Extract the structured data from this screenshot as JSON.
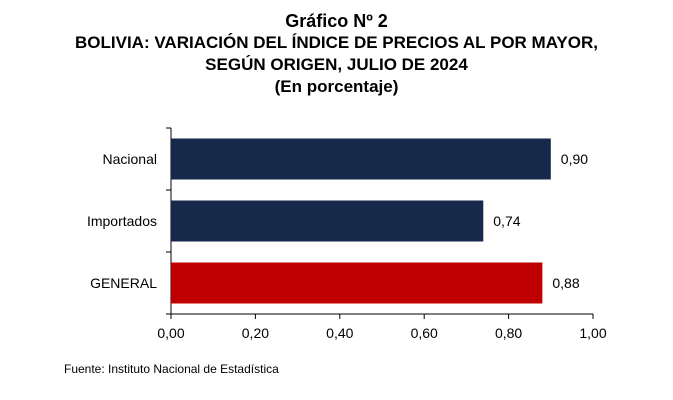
{
  "chart_data": {
    "type": "bar",
    "orientation": "horizontal",
    "title_lines": [
      "Gráfico Nº 2",
      "BOLIVIA: VARIACIÓN DEL ÍNDICE DE PRECIOS AL POR MAYOR,",
      "SEGÚN ORIGEN, JULIO DE 2024",
      "(En porcentaje)"
    ],
    "categories": [
      "Nacional",
      "Importados",
      "GENERAL"
    ],
    "values": [
      0.9,
      0.74,
      0.88
    ],
    "value_labels": [
      "0,90",
      "0,74",
      "0,88"
    ],
    "colors": [
      "#17294a",
      "#17294a",
      "#c00000"
    ],
    "xlim": [
      0,
      1.0
    ],
    "x_ticks": [
      0,
      0.2,
      0.4,
      0.6,
      0.8,
      1.0
    ],
    "x_tick_labels": [
      "0,00",
      "0,20",
      "0,40",
      "0,60",
      "0,80",
      "1,00"
    ],
    "grid": false,
    "legend": "none"
  },
  "source": "Fuente: Instituto Nacional de Estadística"
}
